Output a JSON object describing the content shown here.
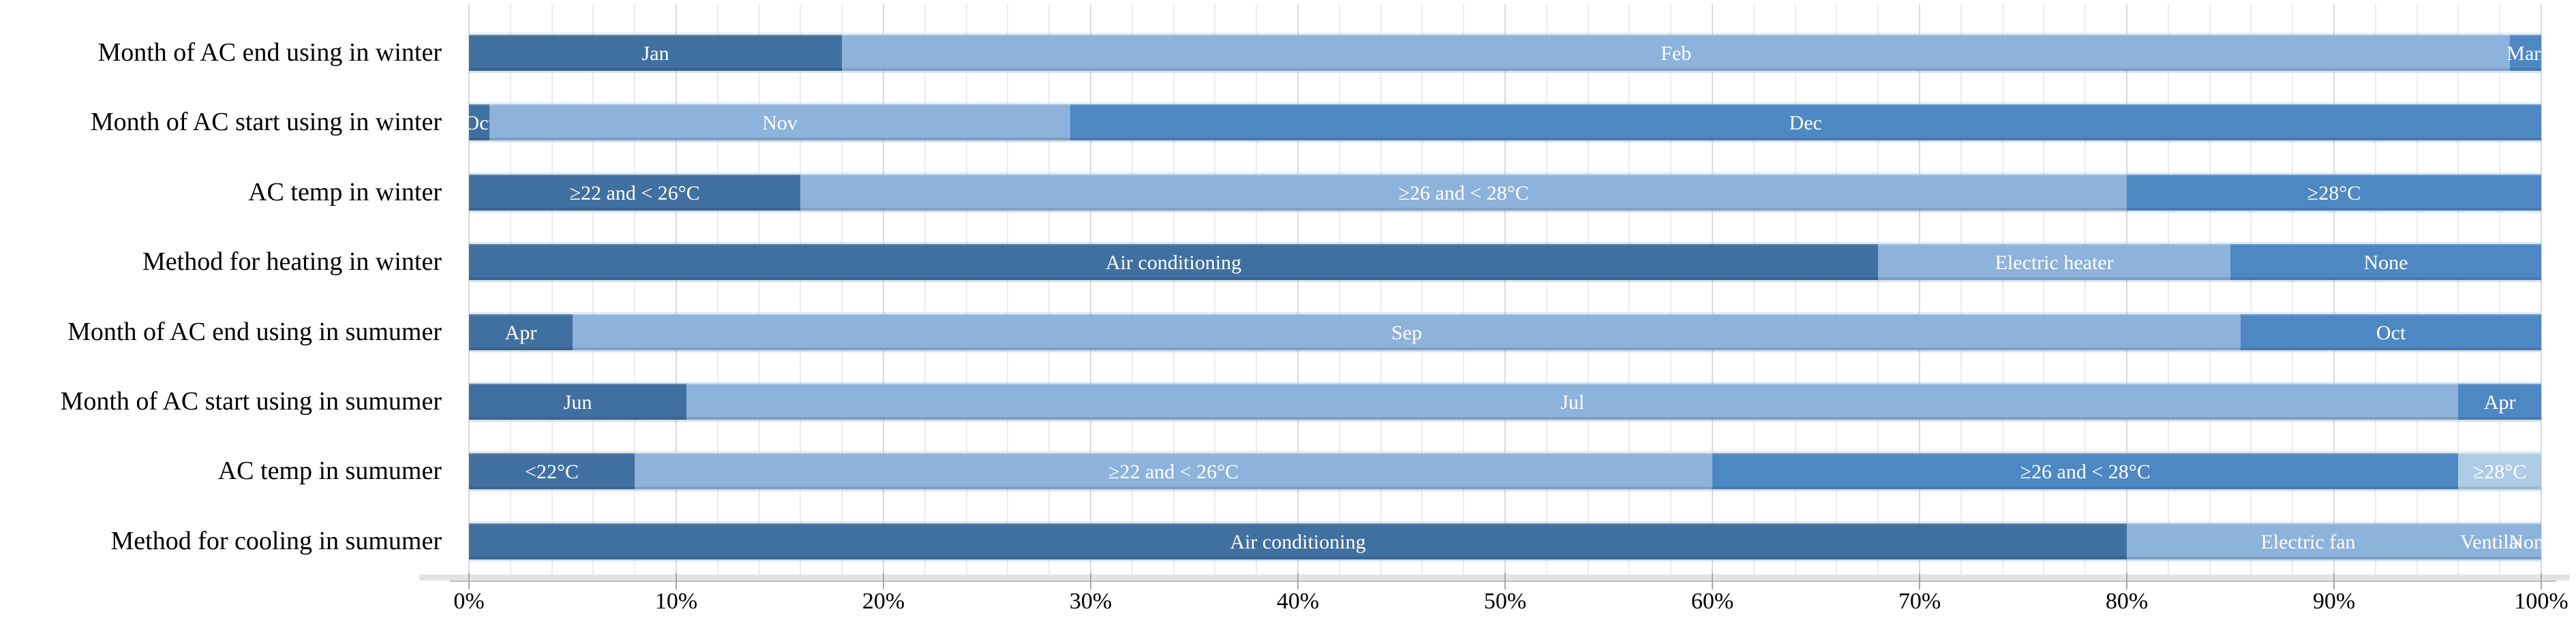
{
  "chart_data": {
    "type": "bar",
    "orientation": "horizontal-stacked",
    "title": "",
    "unit": "%",
    "legend": "none (labels drawn inside segments)",
    "x_axis": {
      "min": 0,
      "max": 100,
      "tick_step": 10,
      "tick_labels": [
        "0%",
        "10%",
        "20%",
        "30%",
        "40%",
        "50%",
        "60%",
        "70%",
        "80%",
        "90%",
        "100%"
      ]
    },
    "grid": {
      "minor_step": 2,
      "major_step": 10,
      "visible": true
    },
    "palette": {
      "dark": "#40709F",
      "light": "#8DB2DB",
      "medium": "#4E88C3",
      "xlight": "#AECBE8"
    },
    "rows": [
      {
        "category": "Month of AC end using in winter",
        "segments": [
          {
            "label": "Jan",
            "value": 18,
            "color": "dark"
          },
          {
            "label": "Feb",
            "value": 80.5,
            "color": "light"
          },
          {
            "label": "Mar.",
            "value": 1.5,
            "color": "medium"
          }
        ]
      },
      {
        "category": "Month of AC start using in winter",
        "segments": [
          {
            "label": "Oct",
            "value": 1,
            "color": "dark"
          },
          {
            "label": "Nov",
            "value": 28,
            "color": "light"
          },
          {
            "label": "Dec",
            "value": 71,
            "color": "medium"
          }
        ]
      },
      {
        "category": "AC temp in winter",
        "segments": [
          {
            "label": "≥22 and < 26°C",
            "value": 16,
            "color": "dark"
          },
          {
            "label": "≥26 and < 28°C",
            "value": 64,
            "color": "light"
          },
          {
            "label": "≥28°C",
            "value": 20,
            "color": "medium"
          }
        ]
      },
      {
        "category": "Method for heating in winter",
        "segments": [
          {
            "label": "Air conditioning",
            "value": 68,
            "color": "dark"
          },
          {
            "label": "Electric heater",
            "value": 17,
            "color": "light"
          },
          {
            "label": "None",
            "value": 15,
            "color": "medium"
          }
        ]
      },
      {
        "category": "Month of AC end using in sumumer",
        "segments": [
          {
            "label": "Apr",
            "value": 5,
            "color": "dark"
          },
          {
            "label": "Sep",
            "value": 80.5,
            "color": "light"
          },
          {
            "label": "Oct",
            "value": 14.5,
            "color": "medium"
          }
        ]
      },
      {
        "category": "Month of AC start using in sumumer",
        "segments": [
          {
            "label": "Jun",
            "value": 10.5,
            "color": "dark"
          },
          {
            "label": "Jul",
            "value": 85.5,
            "color": "light"
          },
          {
            "label": "Apr",
            "value": 4,
            "color": "medium"
          }
        ]
      },
      {
        "category": "AC temp in sumumer",
        "segments": [
          {
            "label": "<22°C",
            "value": 8,
            "color": "dark"
          },
          {
            "label": "≥22 and < 26°C",
            "value": 52,
            "color": "light"
          },
          {
            "label": "≥26 and < 28°C",
            "value": 36,
            "color": "medium"
          },
          {
            "label": "≥28°C",
            "value": 4,
            "color": "xlight"
          }
        ]
      },
      {
        "category": "Method for cooling in sumumer",
        "segments": [
          {
            "label": "Air conditioning",
            "value": 80,
            "color": "dark"
          },
          {
            "label": "Electric fan",
            "value": 17.5,
            "color": "light"
          },
          {
            "label": "Ventilation",
            "value": 1.5,
            "color": "light"
          },
          {
            "label": "None",
            "value": 1,
            "color": "light"
          }
        ]
      }
    ]
  }
}
